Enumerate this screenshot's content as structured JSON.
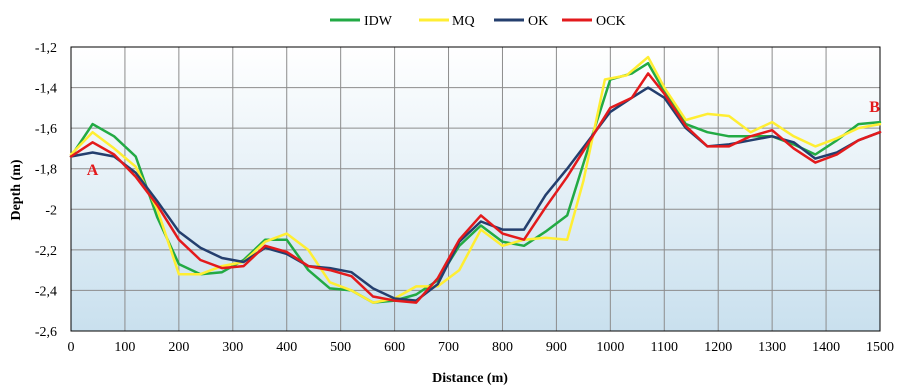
{
  "chart_data": {
    "type": "line",
    "title": "",
    "xlabel": "Distance (m)",
    "ylabel": "Depth (m)",
    "xlim": [
      0,
      1500
    ],
    "ylim": [
      -2.6,
      -1.2
    ],
    "xticks": [
      0,
      100,
      200,
      300,
      400,
      500,
      600,
      700,
      800,
      900,
      1000,
      1100,
      1200,
      1300,
      1400,
      1500
    ],
    "yticks": [
      -1.2,
      -1.4,
      -1.6,
      -1.8,
      -2,
      -2.2,
      -2.4,
      -2.6
    ],
    "xtick_labels": [
      "0",
      "100",
      "200",
      "300",
      "400",
      "500",
      "600",
      "700",
      "800",
      "900",
      "1000",
      "1100",
      "1200",
      "1300",
      "1400",
      "1500"
    ],
    "ytick_labels": [
      "-1,2",
      "-1,4",
      "-1,6",
      "-1,8",
      "-2",
      "-2,2",
      "-2,4",
      "-2,6"
    ],
    "grid": true,
    "legend_position": "top-center",
    "background": "gradient white to light blue",
    "annotations": [
      {
        "text": "A",
        "x": 25,
        "y": -1.83,
        "color": "#e31a1c"
      },
      {
        "text": "B",
        "x": 1490,
        "y": -1.52,
        "color": "#e31a1c"
      }
    ],
    "series": [
      {
        "name": "IDW",
        "color": "#22aa44",
        "x": [
          0,
          40,
          80,
          120,
          160,
          200,
          240,
          280,
          320,
          360,
          400,
          440,
          480,
          520,
          560,
          600,
          640,
          680,
          720,
          760,
          800,
          840,
          880,
          920,
          960,
          1000,
          1040,
          1070,
          1100,
          1140,
          1180,
          1220,
          1260,
          1300,
          1340,
          1380,
          1420,
          1460,
          1500
        ],
        "y": [
          -1.74,
          -1.58,
          -1.64,
          -1.74,
          -2.04,
          -2.27,
          -2.32,
          -2.31,
          -2.25,
          -2.15,
          -2.15,
          -2.3,
          -2.39,
          -2.4,
          -2.46,
          -2.45,
          -2.42,
          -2.35,
          -2.18,
          -2.08,
          -2.16,
          -2.18,
          -2.11,
          -2.03,
          -1.69,
          -1.36,
          -1.33,
          -1.28,
          -1.42,
          -1.58,
          -1.62,
          -1.64,
          -1.64,
          -1.64,
          -1.68,
          -1.73,
          -1.66,
          -1.58,
          -1.57
        ]
      },
      {
        "name": "MQ",
        "color": "#ffee33",
        "x": [
          0,
          40,
          80,
          120,
          160,
          200,
          240,
          280,
          320,
          360,
          400,
          440,
          480,
          520,
          560,
          600,
          640,
          680,
          720,
          760,
          800,
          840,
          880,
          920,
          950,
          990,
          1030,
          1070,
          1100,
          1140,
          1180,
          1220,
          1260,
          1300,
          1340,
          1380,
          1420,
          1460,
          1500
        ],
        "y": [
          -1.73,
          -1.62,
          -1.7,
          -1.79,
          -2.0,
          -2.32,
          -2.32,
          -2.28,
          -2.26,
          -2.16,
          -2.12,
          -2.2,
          -2.36,
          -2.4,
          -2.46,
          -2.44,
          -2.38,
          -2.38,
          -2.3,
          -2.1,
          -2.18,
          -2.15,
          -2.14,
          -2.15,
          -1.86,
          -1.36,
          -1.34,
          -1.25,
          -1.4,
          -1.56,
          -1.53,
          -1.54,
          -1.62,
          -1.57,
          -1.64,
          -1.69,
          -1.65,
          -1.6,
          -1.58
        ]
      },
      {
        "name": "OK",
        "color": "#243f6e",
        "x": [
          0,
          40,
          80,
          120,
          160,
          200,
          240,
          280,
          320,
          360,
          400,
          440,
          480,
          520,
          560,
          600,
          640,
          680,
          720,
          760,
          800,
          840,
          880,
          920,
          960,
          1000,
          1040,
          1070,
          1100,
          1140,
          1180,
          1220,
          1260,
          1300,
          1340,
          1380,
          1420,
          1460,
          1500
        ],
        "y": [
          -1.74,
          -1.72,
          -1.74,
          -1.82,
          -1.96,
          -2.11,
          -2.19,
          -2.24,
          -2.26,
          -2.19,
          -2.22,
          -2.28,
          -2.29,
          -2.31,
          -2.39,
          -2.44,
          -2.45,
          -2.37,
          -2.16,
          -2.06,
          -2.1,
          -2.1,
          -1.93,
          -1.8,
          -1.66,
          -1.52,
          -1.45,
          -1.4,
          -1.45,
          -1.6,
          -1.69,
          -1.68,
          -1.66,
          -1.64,
          -1.67,
          -1.75,
          -1.72,
          -1.66,
          -1.62
        ]
      },
      {
        "name": "OCK",
        "color": "#e31a1c",
        "x": [
          0,
          40,
          80,
          120,
          160,
          200,
          240,
          280,
          320,
          360,
          400,
          440,
          480,
          520,
          560,
          600,
          640,
          680,
          720,
          760,
          800,
          840,
          880,
          920,
          960,
          1000,
          1040,
          1070,
          1100,
          1140,
          1180,
          1220,
          1260,
          1300,
          1340,
          1380,
          1420,
          1460,
          1500
        ],
        "y": [
          -1.74,
          -1.67,
          -1.73,
          -1.84,
          -1.98,
          -2.15,
          -2.25,
          -2.29,
          -2.28,
          -2.18,
          -2.21,
          -2.28,
          -2.3,
          -2.33,
          -2.43,
          -2.45,
          -2.46,
          -2.34,
          -2.15,
          -2.03,
          -2.12,
          -2.15,
          -1.99,
          -1.84,
          -1.67,
          -1.5,
          -1.45,
          -1.33,
          -1.43,
          -1.59,
          -1.69,
          -1.69,
          -1.64,
          -1.61,
          -1.7,
          -1.77,
          -1.73,
          -1.66,
          -1.62
        ]
      }
    ]
  }
}
